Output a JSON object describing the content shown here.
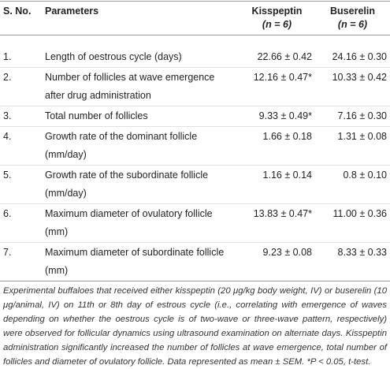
{
  "table": {
    "header": [
      "S. No.",
      "Parameters",
      {
        "name": "Kisspeptin",
        "n": "(n = 6)"
      },
      {
        "name": "Buserelin",
        "n": "(n = 6)"
      }
    ],
    "rows": [
      [
        "1.",
        "Length of oestrous cycle (days)",
        "22.66 ± 0.42",
        "24.16 ± 0.30"
      ],
      [
        "2.",
        "Number of follicles at wave emergence after drug administration",
        "12.16 ± 0.47*",
        "10.33 ± 0.42"
      ],
      [
        "3.",
        "Total number of follicles",
        "9.33 ± 0.49*",
        "7.16 ± 0.30"
      ],
      [
        "4.",
        "Growth rate of the dominant follicle (mm/day)",
        "1.66 ± 0.18",
        "1.31 ± 0.08"
      ],
      [
        "5.",
        "Growth rate of the subordinate follicle (mm/day)",
        "1.16 ± 0.14",
        "0.8 ± 0.10"
      ],
      [
        "6.",
        "Maximum diameter of ovulatory follicle (mm)",
        "13.83 ± 0.47*",
        "11.00 ± 0.36"
      ],
      [
        "7.",
        "Maximum diameter of subordinate follicle (mm)",
        "9.23 ± 0.08",
        "8.33 ± 0.33"
      ]
    ],
    "footnote": "Experimental buffaloes that received either kisspeptin (20 μg/kg body weight, IV) or buserelin (10 μg/animal, IV) on 11th or 8th day of estrous cycle (i.e., correlating with emergence of waves depending on whether the oestrous cycle is of two-wave or three-wave pattern, respectively) were observed for follicular dynamics using ultrasound examination on alternate days. Kisspeptin administration significantly increased the number of follicles at wave emergence, total number of follicles and diameter of ovulatory follicle. Data represented as mean ± SEM. *P < 0.05, t-test."
  }
}
